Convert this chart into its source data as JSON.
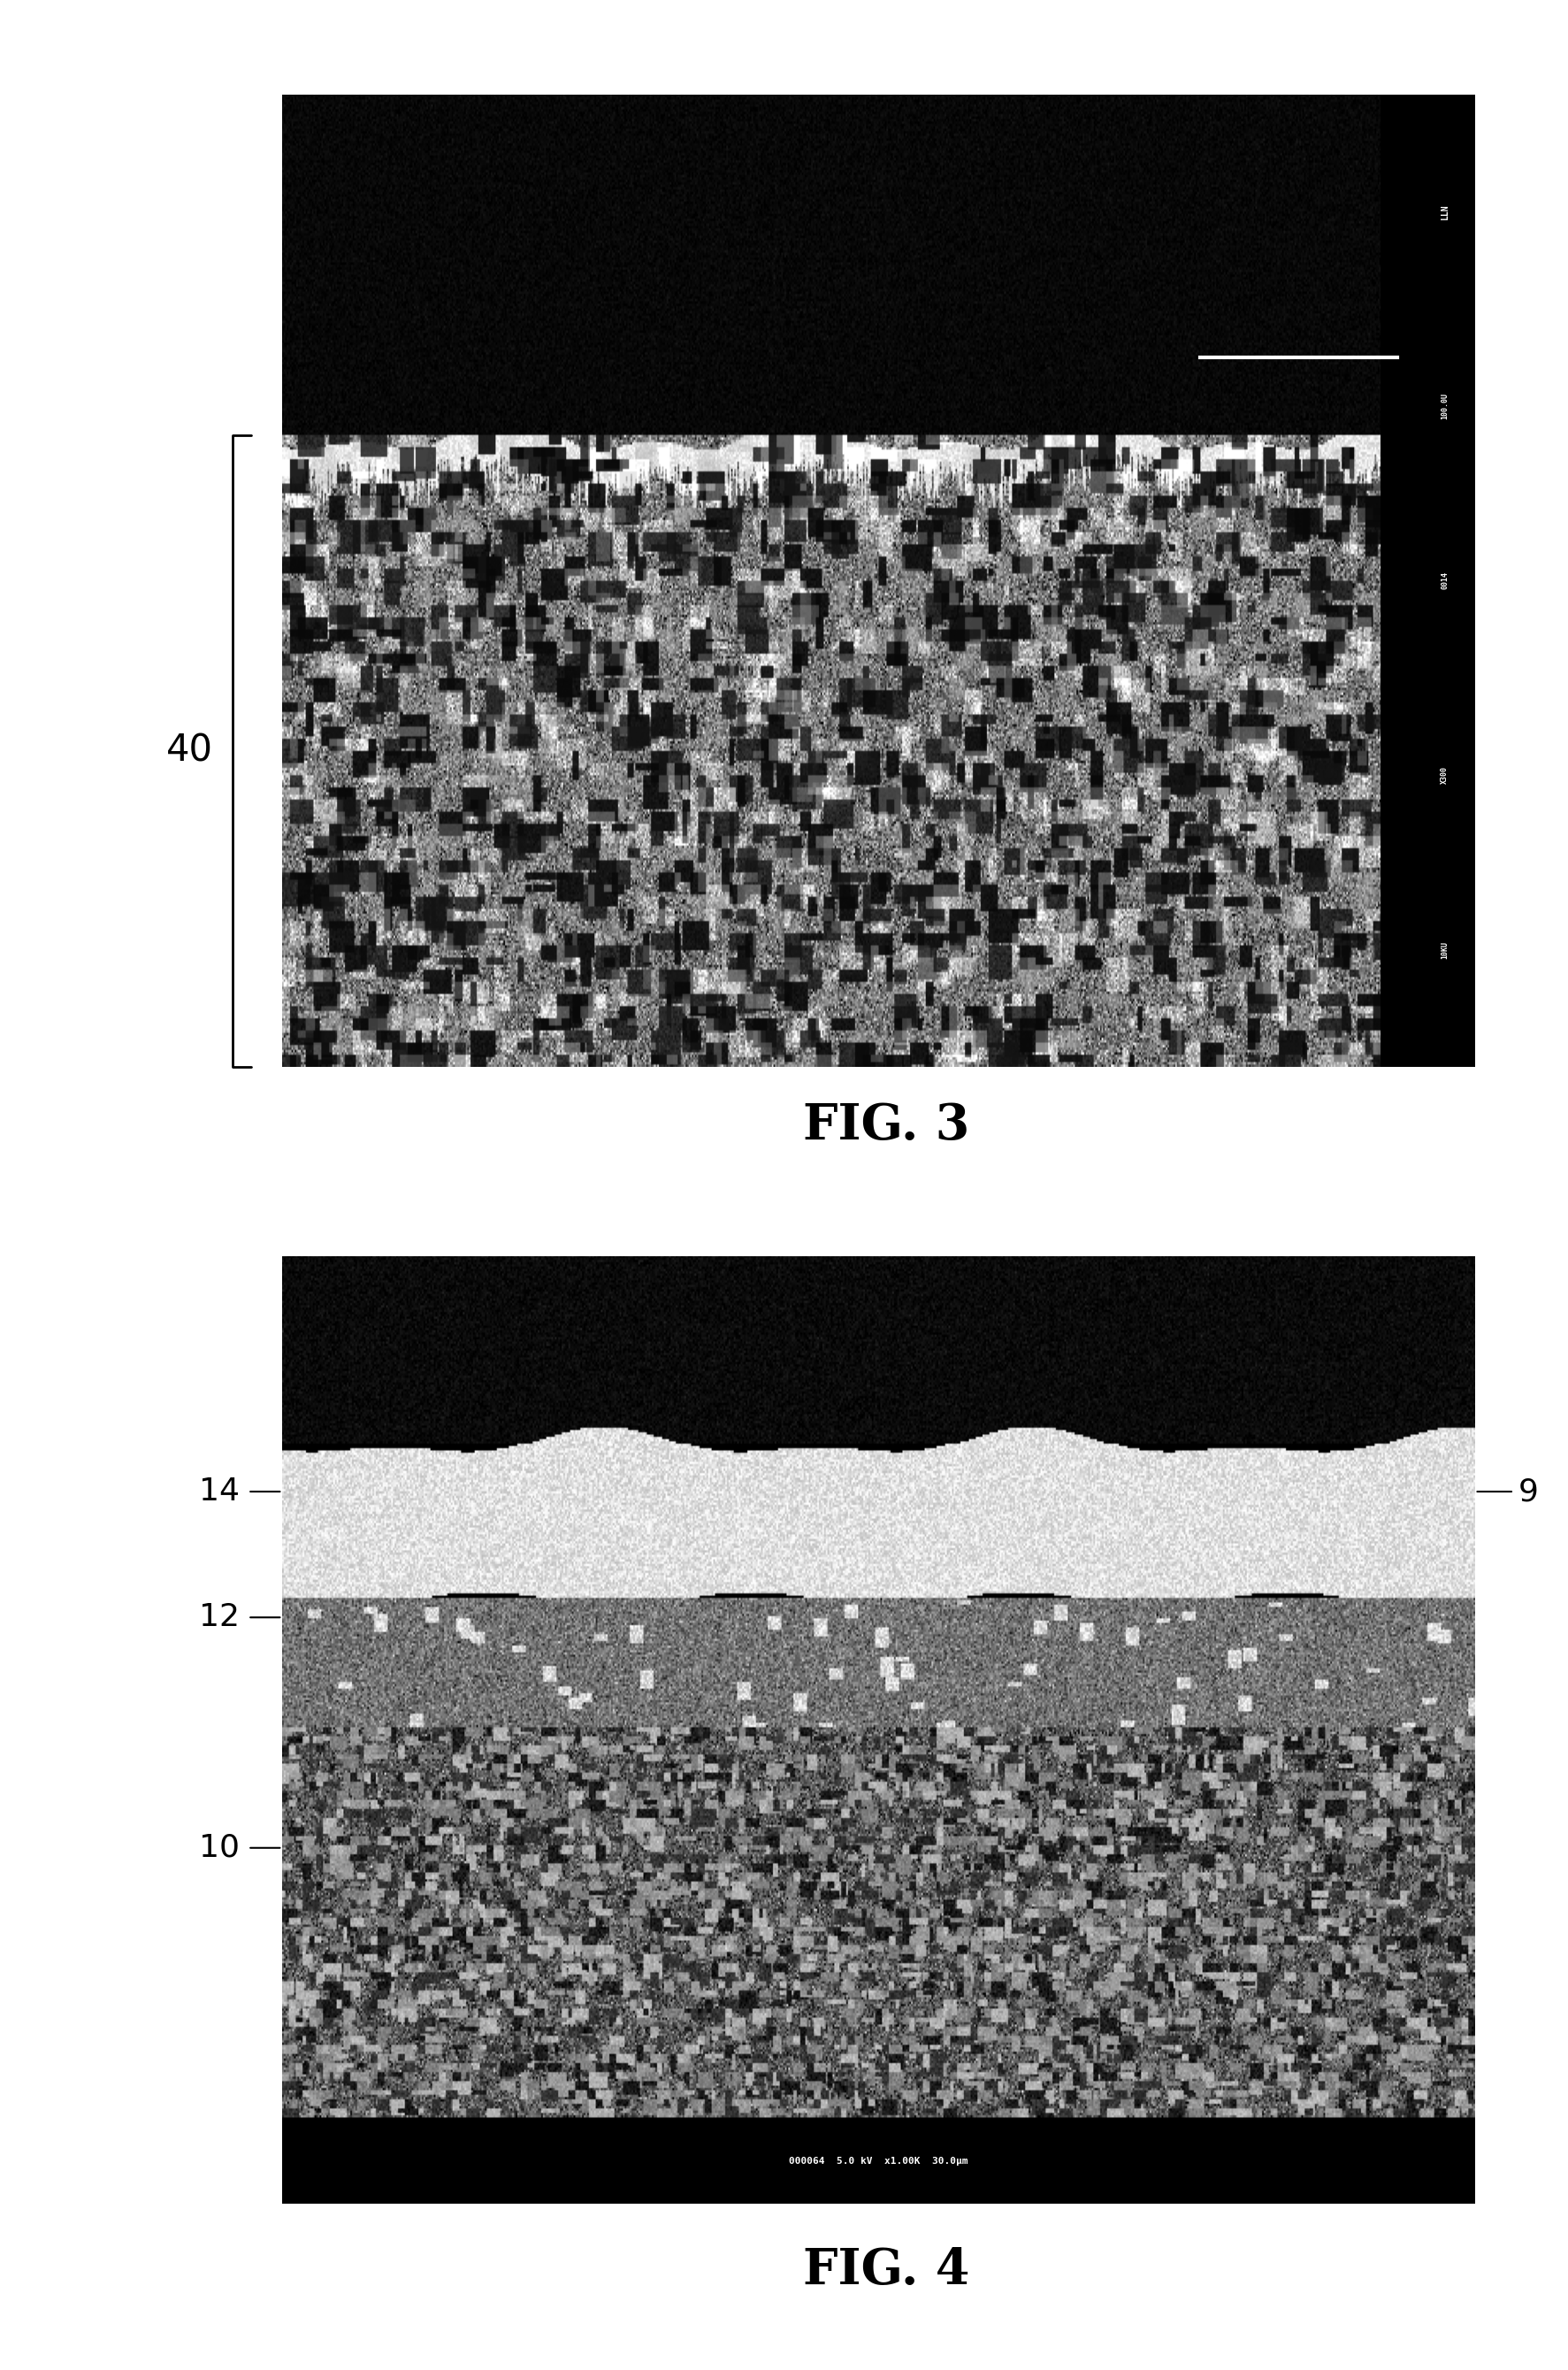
{
  "fig3_label": "FIG. 3",
  "fig4_label": "FIG. 4",
  "label_40": "40",
  "label_14": "14",
  "label_12": "12",
  "label_10": "10",
  "label_9": "9",
  "fig4_sem_text_bottom": "000064  5.0 kV  x1.00K  30.0μm",
  "bg_color": "#ffffff"
}
